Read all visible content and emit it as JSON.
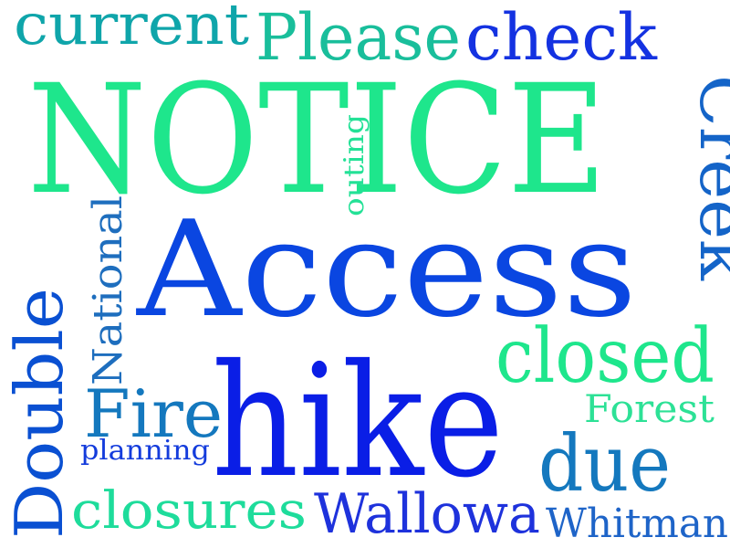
{
  "word_cloud": {
    "words": [
      {
        "id": "notice",
        "text": "NOTICE",
        "color": "#1EE68C"
      },
      {
        "id": "access",
        "text": "Access",
        "color": "#0A46E1"
      },
      {
        "id": "hike",
        "text": "hike",
        "color": "#0A1EE6"
      },
      {
        "id": "please",
        "text": "Please",
        "color": "#19BE9B"
      },
      {
        "id": "check",
        "text": "check",
        "color": "#1432E1"
      },
      {
        "id": "current",
        "text": "current",
        "color": "#0FA5AA"
      },
      {
        "id": "creek",
        "text": "Creek",
        "color": "#1464C8"
      },
      {
        "id": "closed",
        "text": "closed",
        "color": "#1EE68C"
      },
      {
        "id": "outing",
        "text": "outing",
        "color": "#23E196"
      },
      {
        "id": "national",
        "text": "National",
        "color": "#1E6EBE"
      },
      {
        "id": "double",
        "text": "Double",
        "color": "#0A50D2"
      },
      {
        "id": "fire",
        "text": "Fire",
        "color": "#1478BE"
      },
      {
        "id": "forest",
        "text": "Forest",
        "color": "#2DE196"
      },
      {
        "id": "planning",
        "text": "planning",
        "color": "#143CDC"
      },
      {
        "id": "due",
        "text": "due",
        "color": "#1478BE"
      },
      {
        "id": "closures",
        "text": "closures",
        "color": "#1EDC9B"
      },
      {
        "id": "wallowa",
        "text": "Wallowa",
        "color": "#1E32DC"
      },
      {
        "id": "whitman",
        "text": "Whitman",
        "color": "#1E64C8"
      }
    ]
  }
}
